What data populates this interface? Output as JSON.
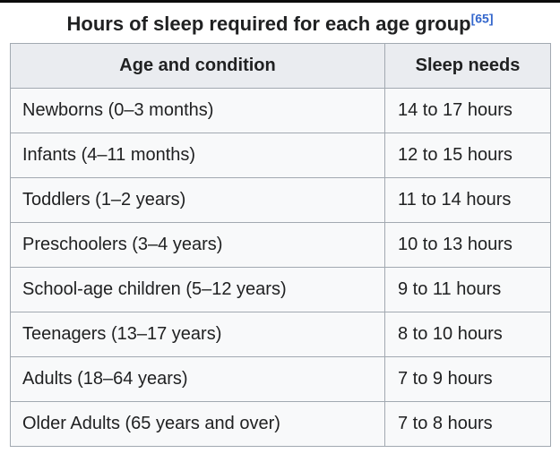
{
  "title": {
    "text": "Hours of sleep required for each age group",
    "citation": "[65]"
  },
  "table": {
    "headers": {
      "age": "Age and condition",
      "sleep": "Sleep needs"
    },
    "rows": [
      {
        "age": "Newborns (0–3 months)",
        "sleep": "14 to 17 hours"
      },
      {
        "age": "Infants (4–11 months)",
        "sleep": "12 to 15 hours"
      },
      {
        "age": "Toddlers (1–2 years)",
        "sleep": "11 to 14 hours"
      },
      {
        "age": "Preschoolers (3–4 years)",
        "sleep": "10 to 13 hours"
      },
      {
        "age": "School-age children (5–12 years)",
        "sleep": "9 to 11 hours"
      },
      {
        "age": "Teenagers (13–17 years)",
        "sleep": "8 to 10 hours"
      },
      {
        "age": "Adults (18–64 years)",
        "sleep": "7 to 9 hours"
      },
      {
        "age": "Older Adults (65 years and over)",
        "sleep": "7 to 8 hours"
      }
    ]
  },
  "colors": {
    "text": "#202122",
    "citation_link": "#3366cc",
    "table_border": "#a2a9b1",
    "header_background": "#eaecf0",
    "cell_background": "#f8f9fa",
    "page_background": "#ffffff",
    "top_border": "#0b0b0b"
  }
}
